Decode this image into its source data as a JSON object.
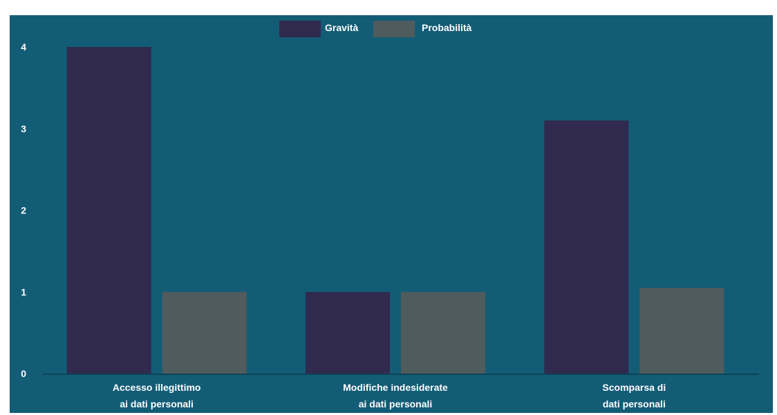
{
  "chart_data": {
    "type": "bar",
    "categories": [
      [
        "Accesso illegittimo",
        "ai dati personali"
      ],
      [
        "Modifiche indesiderate",
        "ai dati personali"
      ],
      [
        "Scomparsa di",
        "dati personali"
      ]
    ],
    "series": [
      {
        "name": "Gravità",
        "values": [
          4,
          1,
          3.1
        ],
        "color": "#2f2a4e"
      },
      {
        "name": "Probabilità",
        "values": [
          1,
          1,
          1.05
        ],
        "color": "#505b5d"
      }
    ],
    "ylim": [
      0,
      4
    ],
    "yticks": [
      0,
      1,
      2,
      3,
      4
    ],
    "grid": false,
    "legend_position": "top-center",
    "background_color": "#135c76",
    "axis_color": "#0d4358"
  }
}
